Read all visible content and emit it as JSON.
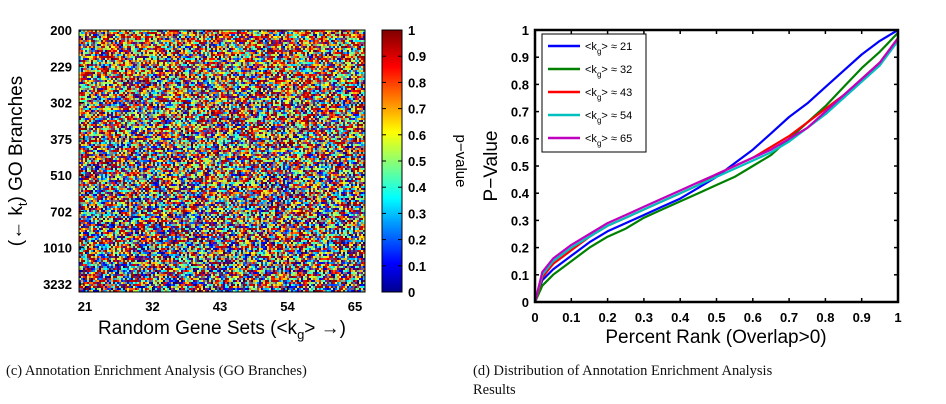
{
  "chart_data": [
    {
      "type": "heatmap",
      "xlabel": "Random Gene Sets (<k",
      "xlabel_sub": "g",
      "xlabel_tail": "> →)",
      "ylabel": "(← k",
      "ylabel_sub": "t",
      "ylabel_tail": ") GO Branches",
      "x_ticks": [
        "21",
        "32",
        "43",
        "54",
        "65"
      ],
      "y_ticks": [
        "200",
        "229",
        "302",
        "375",
        "510",
        "702",
        "1010",
        "3232"
      ],
      "colorbar": {
        "label": "p−value",
        "ticks": [
          "0",
          "0.1",
          "0.2",
          "0.3",
          "0.4",
          "0.5",
          "0.6",
          "0.7",
          "0.8",
          "0.9",
          "1"
        ],
        "range": [
          0,
          1
        ],
        "colormap": "jet"
      },
      "grid": false
    },
    {
      "type": "line",
      "xlabel": "Percent Rank (Overlap>0)",
      "ylabel": "P−Value",
      "x_ticks": [
        "0",
        "0.1",
        "0.2",
        "0.3",
        "0.4",
        "0.5",
        "0.6",
        "0.7",
        "0.8",
        "0.9",
        "1"
      ],
      "y_ticks": [
        "0",
        "0.1",
        "0.2",
        "0.3",
        "0.4",
        "0.5",
        "0.6",
        "0.7",
        "0.8",
        "0.9",
        "1"
      ],
      "xlim": [
        0,
        1
      ],
      "ylim": [
        0,
        1
      ],
      "grid": false,
      "legend_position": "top-left",
      "x": [
        0,
        0.02,
        0.05,
        0.1,
        0.15,
        0.2,
        0.25,
        0.3,
        0.35,
        0.4,
        0.45,
        0.5,
        0.55,
        0.6,
        0.65,
        0.7,
        0.75,
        0.8,
        0.85,
        0.9,
        0.95,
        1.0
      ],
      "series": [
        {
          "name": "<k",
          "name_sub": "g",
          "name_tail": "> ≈ 21",
          "color": "#0000ff",
          "values": [
            0.0,
            0.08,
            0.12,
            0.17,
            0.22,
            0.26,
            0.29,
            0.32,
            0.35,
            0.38,
            0.42,
            0.46,
            0.51,
            0.56,
            0.62,
            0.68,
            0.73,
            0.79,
            0.85,
            0.91,
            0.96,
            1.0
          ]
        },
        {
          "name": "<k",
          "name_sub": "g",
          "name_tail": "> ≈ 32",
          "color": "#008000",
          "values": [
            0.0,
            0.06,
            0.1,
            0.15,
            0.2,
            0.24,
            0.27,
            0.31,
            0.34,
            0.37,
            0.4,
            0.43,
            0.46,
            0.5,
            0.54,
            0.6,
            0.66,
            0.72,
            0.79,
            0.86,
            0.92,
            0.99
          ]
        },
        {
          "name": "<k",
          "name_sub": "g",
          "name_tail": "> ≈ 43",
          "color": "#ff0000",
          "values": [
            0.0,
            0.09,
            0.14,
            0.19,
            0.24,
            0.28,
            0.31,
            0.34,
            0.37,
            0.4,
            0.43,
            0.47,
            0.5,
            0.53,
            0.57,
            0.61,
            0.66,
            0.71,
            0.76,
            0.82,
            0.88,
            0.97
          ]
        },
        {
          "name": "<k",
          "name_sub": "g",
          "name_tail": "> ≈ 54",
          "color": "#00bfbf",
          "values": [
            0.0,
            0.1,
            0.15,
            0.2,
            0.24,
            0.28,
            0.31,
            0.34,
            0.37,
            0.4,
            0.43,
            0.46,
            0.49,
            0.52,
            0.55,
            0.59,
            0.64,
            0.69,
            0.75,
            0.81,
            0.87,
            0.96
          ]
        },
        {
          "name": "<k",
          "name_sub": "g",
          "name_tail": "> ≈ 65",
          "color": "#bf00bf",
          "values": [
            0.0,
            0.11,
            0.16,
            0.21,
            0.25,
            0.29,
            0.32,
            0.35,
            0.38,
            0.41,
            0.44,
            0.47,
            0.5,
            0.53,
            0.56,
            0.6,
            0.64,
            0.7,
            0.76,
            0.82,
            0.88,
            0.97
          ]
        }
      ]
    }
  ],
  "captions": {
    "left": "(c)  Annotation Enrichment Analysis (GO Branches)",
    "right_line1": "(d)  Distribution  of  Annotation  Enrichment  Analysis",
    "right_line2": "Results"
  }
}
